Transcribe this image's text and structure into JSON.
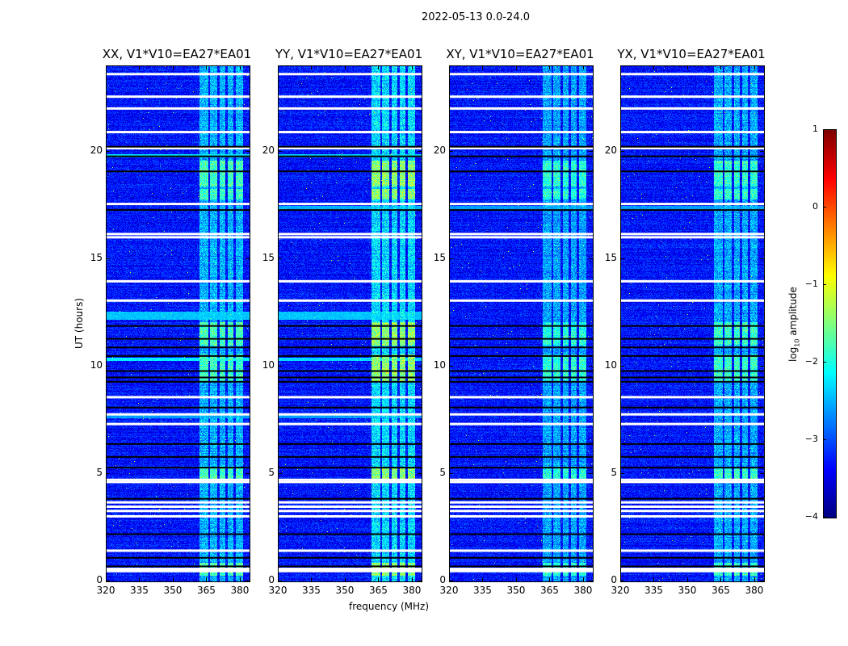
{
  "chart_data": {
    "type": "heatmap",
    "title": "2022-05-13 0.0-24.0",
    "xlabel": "frequency (MHz)",
    "ylabel": "UT (hours)",
    "xlim": [
      320,
      384
    ],
    "ylim": [
      0,
      24
    ],
    "xticks": [
      "320",
      "335",
      "350",
      "365",
      "380"
    ],
    "xtick_values": [
      320,
      335,
      350,
      365,
      380
    ],
    "yticks": [
      "0",
      "5",
      "10",
      "15",
      "20"
    ],
    "ytick_values": [
      0,
      5,
      10,
      15,
      20
    ],
    "panels": [
      {
        "title": "XX, V1*V10=EA27*EA01",
        "rfi_gain": 1.0,
        "bright_rows": [
          [
            12.2,
            12.6,
            -2.4
          ],
          [
            19.75,
            19.9,
            -2.2
          ],
          [
            10.3,
            10.45,
            -2.2
          ],
          [
            7.6,
            7.8,
            -2.6
          ]
        ]
      },
      {
        "title": "YY, V1*V10=EA27*EA01",
        "rfi_gain": 1.25,
        "bright_rows": [
          [
            12.2,
            12.6,
            -2.4
          ],
          [
            19.75,
            19.9,
            -2.3
          ],
          [
            10.3,
            10.45,
            -2.3
          ],
          [
            17.3,
            17.5,
            -2.5
          ],
          [
            7.6,
            7.8,
            -2.6
          ]
        ]
      },
      {
        "title": "XY, V1*V10=EA27*EA01",
        "rfi_gain": 0.9,
        "bright_rows": [
          [
            17.3,
            17.5,
            -2.6
          ]
        ]
      },
      {
        "title": "YX, V1*V10=EA27*EA01",
        "rfi_gain": 0.95,
        "bright_rows": [
          [
            17.3,
            17.5,
            -2.6
          ]
        ]
      }
    ],
    "background_log_amplitude": -3.3,
    "rfi_channels_mhz": [
      [
        361.5,
        365.5
      ],
      [
        366,
        369.5
      ],
      [
        370.5,
        373
      ],
      [
        374,
        376.5
      ],
      [
        377.5,
        381
      ]
    ],
    "rfi_strong_hours": [
      [
        18.4,
        19.6
      ],
      [
        9.3,
        10.6
      ],
      [
        11.0,
        12.1
      ],
      [
        4.8,
        5.3
      ],
      [
        17.8,
        18.3
      ],
      [
        0.3,
        0.9
      ]
    ],
    "flagged_hours_white": [
      23.65,
      22.6,
      22.05,
      20.95,
      20.2,
      17.6,
      16.2,
      16.05,
      14.0,
      13.1,
      8.6,
      7.8,
      7.35,
      4.75,
      4.65,
      3.7,
      3.5,
      3.3,
      3.05,
      1.45,
      0.6,
      0.5
    ],
    "flagged_hours_black": [
      20.25,
      19.8,
      19.1,
      17.3,
      11.9,
      11.3,
      10.9,
      10.5,
      9.8,
      9.5,
      9.3,
      8.1,
      6.4,
      5.8,
      5.3,
      3.85,
      2.2,
      1.1,
      0.7
    ],
    "colorbar": {
      "label": "log10 amplitude",
      "label_main": "log",
      "label_sub": "10",
      "label_rest": " amplitude",
      "range": [
        -4,
        1
      ],
      "ticks": [
        "1",
        "0",
        "−1",
        "−2",
        "−3",
        "−4"
      ],
      "tick_values": [
        1,
        0,
        -1,
        -2,
        -3,
        -4
      ],
      "colormap": "jet"
    }
  }
}
